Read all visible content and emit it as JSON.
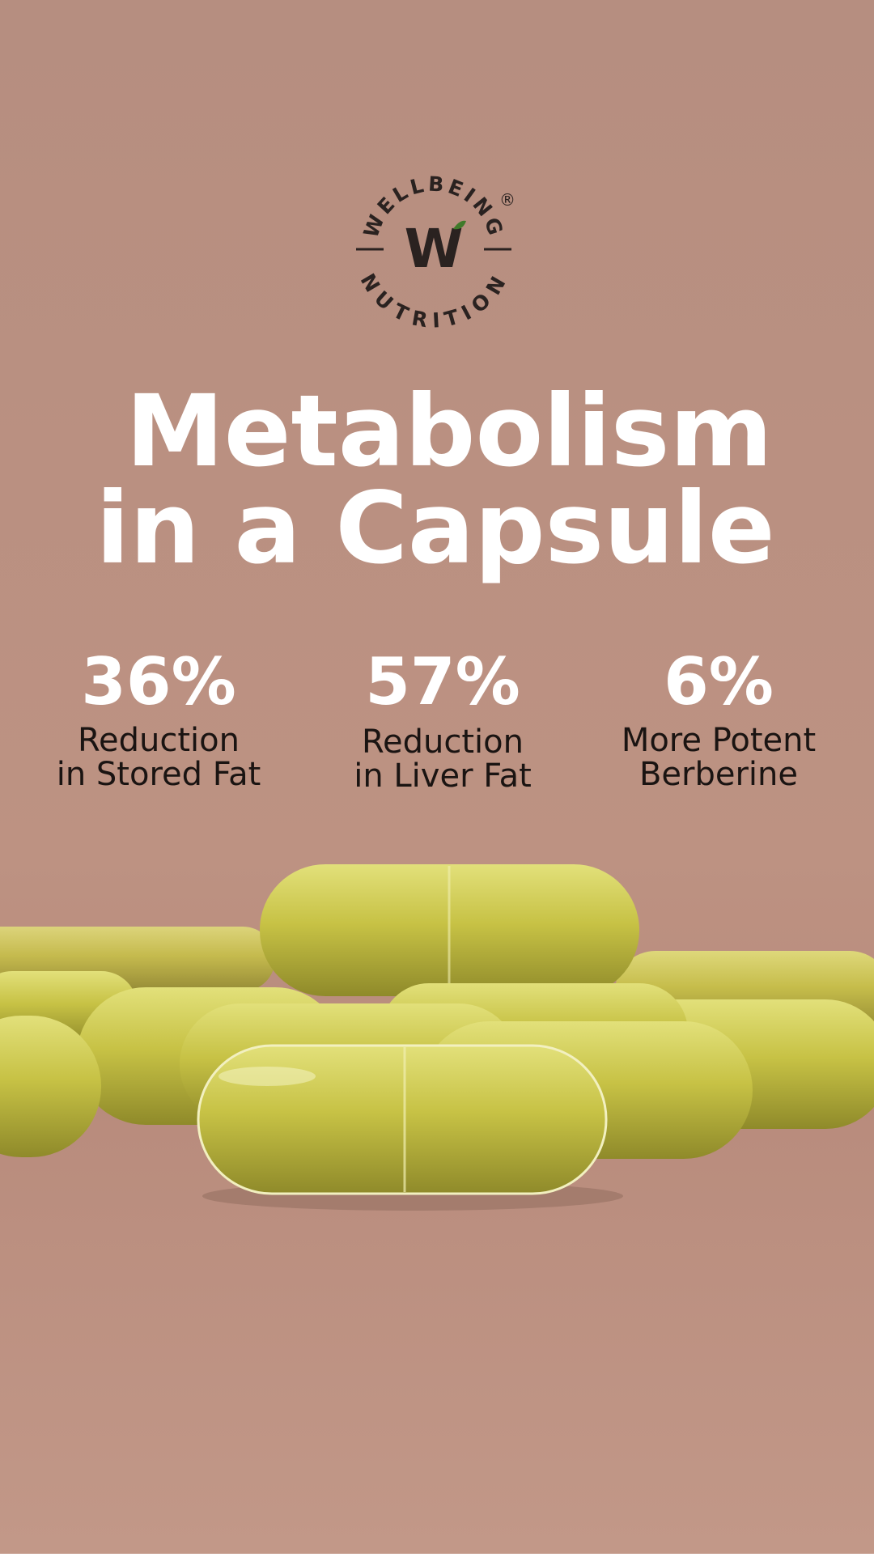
{
  "logo": {
    "top_text": "WELLBEING",
    "bottom_text": "NUTRITION",
    "mark": "W",
    "registered": "®"
  },
  "headline": [
    "Metabolism",
    "in a Capsule"
  ],
  "stats": [
    {
      "value": "36%",
      "label": [
        "Reduction",
        "in Stored Fat"
      ]
    },
    {
      "value": "57%",
      "label": [
        "Reduction",
        "in Liver Fat"
      ]
    },
    {
      "value": "6%",
      "label": [
        "More Potent",
        "Berberine"
      ]
    }
  ]
}
